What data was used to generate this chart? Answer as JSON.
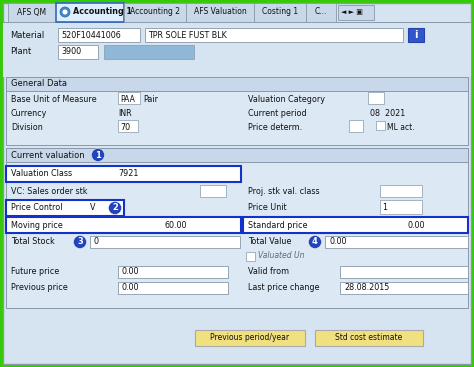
{
  "bg_color": "#ccdaeb",
  "outer_border": "#33cc00",
  "panel_bg": "#d6e4f2",
  "tabs": [
    "AFS QM",
    "Accounting 1",
    "Accounting 2",
    "AFS Valuation",
    "Costing 1",
    "C..."
  ],
  "active_tab": "Accounting 1",
  "tab_active_bg": "#ddeeff",
  "tab_inactive_bg": "#c8d8e8",
  "tab_active_border": "#3366bb",
  "material_code": "520F10441006",
  "material_desc": "TPR SOLE FUST BLK",
  "plant_value": "3900",
  "section_bg": "#dce8f4",
  "section_header_bg": "#c8d8ea",
  "field_bg": "#ffffff",
  "border_color": "#8899aa",
  "highlight_border": "#1133cc",
  "circle_color": "#2244bb",
  "button_bg": "#f0e080",
  "button_border": "#aaaaaa",
  "info_btn_bg": "#3355cc",
  "plant_field_color": "#8fb8d8",
  "text_dark": "#111111",
  "text_gray": "#666666"
}
